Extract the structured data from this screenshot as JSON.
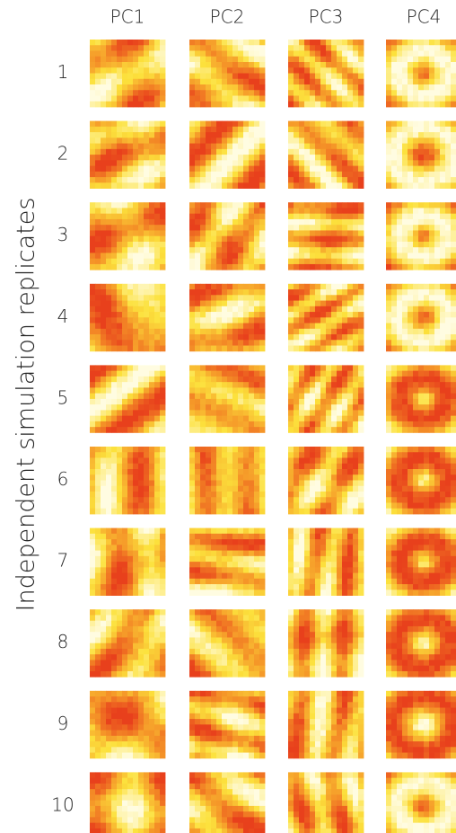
{
  "columns": [
    "PC1",
    "PC2",
    "PC3",
    "PC4"
  ],
  "rows": [
    "1",
    "2",
    "3",
    "4",
    "5",
    "6",
    "7",
    "8",
    "9",
    "10"
  ],
  "y_axis_label": "Independent simulation replicates"
}
